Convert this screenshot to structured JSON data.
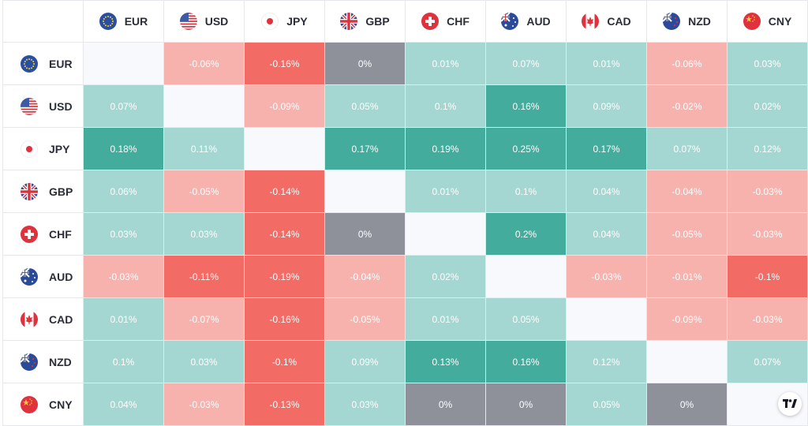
{
  "currencies": [
    "EUR",
    "USD",
    "JPY",
    "GBP",
    "CHF",
    "AUD",
    "CAD",
    "NZD",
    "CNY"
  ],
  "flags": [
    "eu-flag-icon",
    "us-flag-icon",
    "jp-flag-icon",
    "gb-flag-icon",
    "ch-flag-icon",
    "au-flag-icon",
    "ca-flag-icon",
    "nz-flag-icon",
    "cn-flag-icon"
  ],
  "colors": {
    "pos_strong": "#43ac9c",
    "pos_light": "#a4d7d1",
    "neg_strong": "#f26b65",
    "neg_light": "#f8b2ad",
    "zero": "#8f919a",
    "diagonal": "#f8f9fd"
  },
  "chart_data": {
    "type": "heatmap",
    "rows": [
      "EUR",
      "USD",
      "JPY",
      "GBP",
      "CHF",
      "AUD",
      "CAD",
      "NZD",
      "CNY"
    ],
    "columns": [
      "EUR",
      "USD",
      "JPY",
      "GBP",
      "CHF",
      "AUD",
      "CAD",
      "NZD",
      "CNY"
    ],
    "values": [
      [
        null,
        "-0.06%",
        "-0.16%",
        "0%",
        "0.01%",
        "0.07%",
        "0.01%",
        "-0.06%",
        "0.03%"
      ],
      [
        "0.07%",
        null,
        "-0.09%",
        "0.05%",
        "0.1%",
        "0.16%",
        "0.09%",
        "-0.02%",
        "0.02%"
      ],
      [
        "0.18%",
        "0.11%",
        null,
        "0.17%",
        "0.19%",
        "0.25%",
        "0.17%",
        "0.07%",
        "0.12%"
      ],
      [
        "0.06%",
        "-0.05%",
        "-0.14%",
        null,
        "0.01%",
        "0.1%",
        "0.04%",
        "-0.04%",
        "-0.03%"
      ],
      [
        "0.03%",
        "0.03%",
        "-0.14%",
        "0%",
        null,
        "0.2%",
        "0.04%",
        "-0.05%",
        "-0.03%"
      ],
      [
        "-0.03%",
        "-0.11%",
        "-0.19%",
        "-0.04%",
        "0.02%",
        null,
        "-0.03%",
        "-0.01%",
        "-0.1%"
      ],
      [
        "0.01%",
        "-0.07%",
        "-0.16%",
        "-0.05%",
        "0.01%",
        "0.05%",
        null,
        "-0.09%",
        "-0.03%"
      ],
      [
        "0.1%",
        "0.03%",
        "-0.1%",
        "0.09%",
        "0.13%",
        "0.16%",
        "0.12%",
        null,
        "0.07%"
      ],
      [
        "0.04%",
        "-0.03%",
        "-0.13%",
        "0.03%",
        "0%",
        "0%",
        "0.05%",
        "0%",
        null
      ]
    ],
    "shades": [
      [
        null,
        "neg_light",
        "neg_strong",
        "zero",
        "pos_light",
        "pos_light",
        "pos_light",
        "neg_light",
        "pos_light"
      ],
      [
        "pos_light",
        null,
        "neg_light",
        "pos_light",
        "pos_light",
        "pos_strong",
        "pos_light",
        "neg_light",
        "pos_light"
      ],
      [
        "pos_strong",
        "pos_light",
        null,
        "pos_strong",
        "pos_strong",
        "pos_strong",
        "pos_strong",
        "pos_light",
        "pos_light"
      ],
      [
        "pos_light",
        "neg_light",
        "neg_strong",
        null,
        "pos_light",
        "pos_light",
        "pos_light",
        "neg_light",
        "neg_light"
      ],
      [
        "pos_light",
        "pos_light",
        "neg_strong",
        "zero",
        null,
        "pos_strong",
        "pos_light",
        "neg_light",
        "neg_light"
      ],
      [
        "neg_light",
        "neg_strong",
        "neg_strong",
        "neg_light",
        "pos_light",
        null,
        "neg_light",
        "neg_light",
        "neg_strong"
      ],
      [
        "pos_light",
        "neg_light",
        "neg_strong",
        "neg_light",
        "pos_light",
        "pos_light",
        null,
        "neg_light",
        "neg_light"
      ],
      [
        "pos_light",
        "pos_light",
        "neg_strong",
        "pos_light",
        "pos_strong",
        "pos_strong",
        "pos_light",
        null,
        "pos_light"
      ],
      [
        "pos_light",
        "neg_light",
        "neg_strong",
        "pos_light",
        "zero",
        "zero",
        "pos_light",
        "zero",
        null
      ]
    ]
  },
  "logo": {
    "name": "tradingview-logo"
  }
}
